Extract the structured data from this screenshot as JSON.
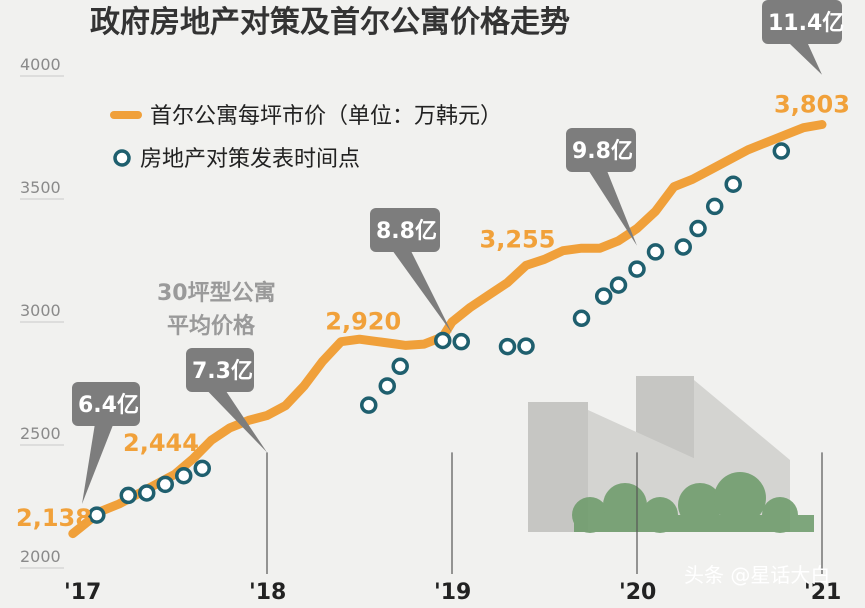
{
  "chart_data": {
    "type": "line",
    "title": "政府房地产对策及首尔公寓价格走势",
    "ylim": [
      2000,
      4000
    ],
    "yticks": [
      2000,
      2500,
      3000,
      3500,
      4000
    ],
    "xticks": [
      "'17",
      "'18",
      "'19",
      "'20",
      "'21"
    ],
    "xlim": [
      2017.0,
      2021.0
    ],
    "legend": [
      {
        "label": "首尔公寓每坪市价（单位：万韩元）",
        "kind": "line"
      },
      {
        "label": "房地产对策发表时间点",
        "kind": "marker"
      }
    ],
    "series": [
      {
        "name": "首尔公寓每坪市价（单位：万韩元）",
        "x": [
          2016.95,
          2017.0,
          2017.1,
          2017.2,
          2017.3,
          2017.4,
          2017.5,
          2017.6,
          2017.7,
          2017.8,
          2017.9,
          2018.0,
          2018.1,
          2018.2,
          2018.3,
          2018.4,
          2018.5,
          2018.6,
          2018.7,
          2018.75,
          2018.85,
          2018.95,
          2019.0,
          2019.1,
          2019.2,
          2019.3,
          2019.4,
          2019.5,
          2019.6,
          2019.7,
          2019.8,
          2019.9,
          2020.0,
          2020.1,
          2020.2,
          2020.3,
          2020.4,
          2020.5,
          2020.6,
          2020.7,
          2020.8,
          2020.9,
          2021.0
        ],
        "values": [
          2140,
          2170,
          2230,
          2260,
          2300,
          2340,
          2380,
          2444,
          2520,
          2570,
          2600,
          2620,
          2660,
          2740,
          2840,
          2920,
          2930,
          2920,
          2910,
          2905,
          2910,
          2940,
          3000,
          3060,
          3110,
          3160,
          3230,
          3255,
          3290,
          3300,
          3300,
          3330,
          3380,
          3450,
          3550,
          3580,
          3620,
          3660,
          3700,
          3730,
          3760,
          3790,
          3803
        ]
      },
      {
        "name": "房地产对策发表时间点",
        "x": [
          2017.08,
          2017.25,
          2017.35,
          2017.45,
          2017.55,
          2017.65,
          2018.55,
          2018.65,
          2018.72,
          2018.95,
          2019.05,
          2019.3,
          2019.4,
          2019.7,
          2019.82,
          2019.9,
          2020.0,
          2020.1,
          2020.25,
          2020.33,
          2020.42,
          2020.52,
          2020.78
        ],
        "values": [
          2215,
          2295,
          2305,
          2340,
          2375,
          2405,
          2662,
          2740,
          2820,
          2925,
          2920,
          2900,
          2902,
          3015,
          3105,
          3150,
          3215,
          3285,
          3305,
          3380,
          3470,
          3560,
          3695
        ]
      }
    ],
    "value_labels": [
      {
        "x": 2017.0,
        "value": 2138,
        "text": "2,138"
      },
      {
        "x": 2017.6,
        "value": 2444,
        "text": "2,444"
      },
      {
        "x": 2018.45,
        "value": 2920,
        "text": "2,920"
      },
      {
        "x": 2019.5,
        "value": 3255,
        "text": "3,255"
      },
      {
        "x": 2021.0,
        "value": 3803,
        "text": "3,803"
      }
    ],
    "annotations": [
      {
        "text": "6.4亿",
        "x": 2017.0
      },
      {
        "text": "7.3亿",
        "x": 2018.0
      },
      {
        "text": "8.8亿",
        "x": 2019.0
      },
      {
        "text": "9.8亿",
        "x": 2020.0
      },
      {
        "text": "11.4亿",
        "x": 2021.0
      }
    ],
    "note": [
      "30坪型公寓",
      "平均价格"
    ],
    "grid": false,
    "legend_position": "top-left",
    "colors": {
      "line": "#f0a03a",
      "marker_face": "#ffffff",
      "marker_edge": "#1f5f6e",
      "callout": "#7d7d7d",
      "value_label": "#f1a13a",
      "background": "#f1f1ef",
      "building": "#c6c6c3",
      "tree": "#6b9a68"
    }
  },
  "watermark": "头条 @星话大白"
}
